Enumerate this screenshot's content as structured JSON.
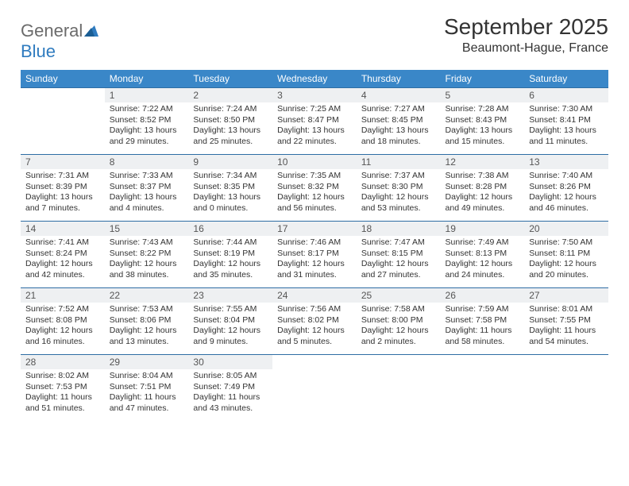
{
  "logo": {
    "text1": "General",
    "text2": "Blue"
  },
  "title": "September 2025",
  "location": "Beaumont-Hague, France",
  "colors": {
    "header_bg": "#3a87c8",
    "header_text": "#ffffff",
    "row_border": "#2e6da4",
    "daynum_bg": "#eef0f2",
    "logo_gray": "#6b6b6b",
    "logo_blue": "#2f7bbf"
  },
  "weekdays": [
    "Sunday",
    "Monday",
    "Tuesday",
    "Wednesday",
    "Thursday",
    "Friday",
    "Saturday"
  ],
  "start_offset": 1,
  "days": [
    {
      "n": 1,
      "sunrise": "7:22 AM",
      "sunset": "8:52 PM",
      "daylight": "13 hours and 29 minutes."
    },
    {
      "n": 2,
      "sunrise": "7:24 AM",
      "sunset": "8:50 PM",
      "daylight": "13 hours and 25 minutes."
    },
    {
      "n": 3,
      "sunrise": "7:25 AM",
      "sunset": "8:47 PM",
      "daylight": "13 hours and 22 minutes."
    },
    {
      "n": 4,
      "sunrise": "7:27 AM",
      "sunset": "8:45 PM",
      "daylight": "13 hours and 18 minutes."
    },
    {
      "n": 5,
      "sunrise": "7:28 AM",
      "sunset": "8:43 PM",
      "daylight": "13 hours and 15 minutes."
    },
    {
      "n": 6,
      "sunrise": "7:30 AM",
      "sunset": "8:41 PM",
      "daylight": "13 hours and 11 minutes."
    },
    {
      "n": 7,
      "sunrise": "7:31 AM",
      "sunset": "8:39 PM",
      "daylight": "13 hours and 7 minutes."
    },
    {
      "n": 8,
      "sunrise": "7:33 AM",
      "sunset": "8:37 PM",
      "daylight": "13 hours and 4 minutes."
    },
    {
      "n": 9,
      "sunrise": "7:34 AM",
      "sunset": "8:35 PM",
      "daylight": "13 hours and 0 minutes."
    },
    {
      "n": 10,
      "sunrise": "7:35 AM",
      "sunset": "8:32 PM",
      "daylight": "12 hours and 56 minutes."
    },
    {
      "n": 11,
      "sunrise": "7:37 AM",
      "sunset": "8:30 PM",
      "daylight": "12 hours and 53 minutes."
    },
    {
      "n": 12,
      "sunrise": "7:38 AM",
      "sunset": "8:28 PM",
      "daylight": "12 hours and 49 minutes."
    },
    {
      "n": 13,
      "sunrise": "7:40 AM",
      "sunset": "8:26 PM",
      "daylight": "12 hours and 46 minutes."
    },
    {
      "n": 14,
      "sunrise": "7:41 AM",
      "sunset": "8:24 PM",
      "daylight": "12 hours and 42 minutes."
    },
    {
      "n": 15,
      "sunrise": "7:43 AM",
      "sunset": "8:22 PM",
      "daylight": "12 hours and 38 minutes."
    },
    {
      "n": 16,
      "sunrise": "7:44 AM",
      "sunset": "8:19 PM",
      "daylight": "12 hours and 35 minutes."
    },
    {
      "n": 17,
      "sunrise": "7:46 AM",
      "sunset": "8:17 PM",
      "daylight": "12 hours and 31 minutes."
    },
    {
      "n": 18,
      "sunrise": "7:47 AM",
      "sunset": "8:15 PM",
      "daylight": "12 hours and 27 minutes."
    },
    {
      "n": 19,
      "sunrise": "7:49 AM",
      "sunset": "8:13 PM",
      "daylight": "12 hours and 24 minutes."
    },
    {
      "n": 20,
      "sunrise": "7:50 AM",
      "sunset": "8:11 PM",
      "daylight": "12 hours and 20 minutes."
    },
    {
      "n": 21,
      "sunrise": "7:52 AM",
      "sunset": "8:08 PM",
      "daylight": "12 hours and 16 minutes."
    },
    {
      "n": 22,
      "sunrise": "7:53 AM",
      "sunset": "8:06 PM",
      "daylight": "12 hours and 13 minutes."
    },
    {
      "n": 23,
      "sunrise": "7:55 AM",
      "sunset": "8:04 PM",
      "daylight": "12 hours and 9 minutes."
    },
    {
      "n": 24,
      "sunrise": "7:56 AM",
      "sunset": "8:02 PM",
      "daylight": "12 hours and 5 minutes."
    },
    {
      "n": 25,
      "sunrise": "7:58 AM",
      "sunset": "8:00 PM",
      "daylight": "12 hours and 2 minutes."
    },
    {
      "n": 26,
      "sunrise": "7:59 AM",
      "sunset": "7:58 PM",
      "daylight": "11 hours and 58 minutes."
    },
    {
      "n": 27,
      "sunrise": "8:01 AM",
      "sunset": "7:55 PM",
      "daylight": "11 hours and 54 minutes."
    },
    {
      "n": 28,
      "sunrise": "8:02 AM",
      "sunset": "7:53 PM",
      "daylight": "11 hours and 51 minutes."
    },
    {
      "n": 29,
      "sunrise": "8:04 AM",
      "sunset": "7:51 PM",
      "daylight": "11 hours and 47 minutes."
    },
    {
      "n": 30,
      "sunrise": "8:05 AM",
      "sunset": "7:49 PM",
      "daylight": "11 hours and 43 minutes."
    }
  ],
  "labels": {
    "sunrise": "Sunrise: ",
    "sunset": "Sunset: ",
    "daylight": "Daylight: "
  }
}
